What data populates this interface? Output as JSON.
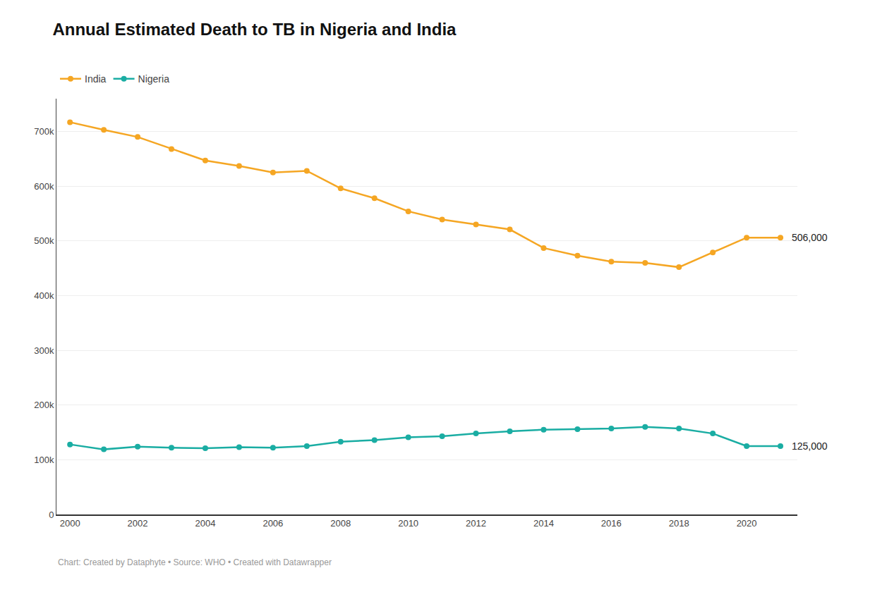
{
  "chart_data": {
    "type": "line",
    "title": "Annual Estimated Death to TB in Nigeria and India",
    "subtitle": "Chart: Created by Dataphyte • Source: WHO • Created with Datawrapper",
    "x": [
      2000,
      2001,
      2002,
      2003,
      2004,
      2005,
      2006,
      2007,
      2008,
      2009,
      2010,
      2011,
      2012,
      2013,
      2014,
      2015,
      2016,
      2017,
      2018,
      2019,
      2020,
      2021
    ],
    "series": [
      {
        "name": "India",
        "color": "#F5A623",
        "marker": "circle",
        "line_style": "solid",
        "values": [
          717000,
          703000,
          690000,
          668000,
          647000,
          637000,
          625000,
          628000,
          596000,
          578000,
          554000,
          539000,
          530000,
          521000,
          487000,
          473000,
          462000,
          460000,
          452000,
          479000,
          506000,
          506000
        ]
      },
      {
        "name": "Nigeria",
        "color": "#1AADA3",
        "marker": "circle",
        "line_style": "solid",
        "values": [
          128000,
          119000,
          124000,
          122000,
          121000,
          123000,
          122000,
          125000,
          133000,
          136000,
          141000,
          143000,
          148000,
          152000,
          155000,
          156000,
          157000,
          160000,
          157000,
          148000,
          125000,
          125000
        ]
      }
    ],
    "annotations": [
      {
        "text": "506,000",
        "x": 2021,
        "y": 506000
      },
      {
        "text": "125,000",
        "x": 2021,
        "y": 125000
      }
    ],
    "xlim": [
      1999.6,
      2021.5
    ],
    "xticks": [
      2000,
      2002,
      2004,
      2006,
      2008,
      2010,
      2012,
      2014,
      2016,
      2018,
      2020
    ],
    "ylim": [
      0,
      760000
    ],
    "yticks": [
      0,
      {
        "value": 100000,
        "label": "100k"
      },
      {
        "value": 200000,
        "label": "200k"
      },
      {
        "value": 300000,
        "label": "300k"
      },
      {
        "value": 400000,
        "label": "400k"
      },
      {
        "value": 500000,
        "label": "500k"
      },
      {
        "value": 600000,
        "label": "600k"
      },
      {
        "value": 700000,
        "label": "700k"
      }
    ],
    "grid": "y",
    "legend": "top left"
  }
}
